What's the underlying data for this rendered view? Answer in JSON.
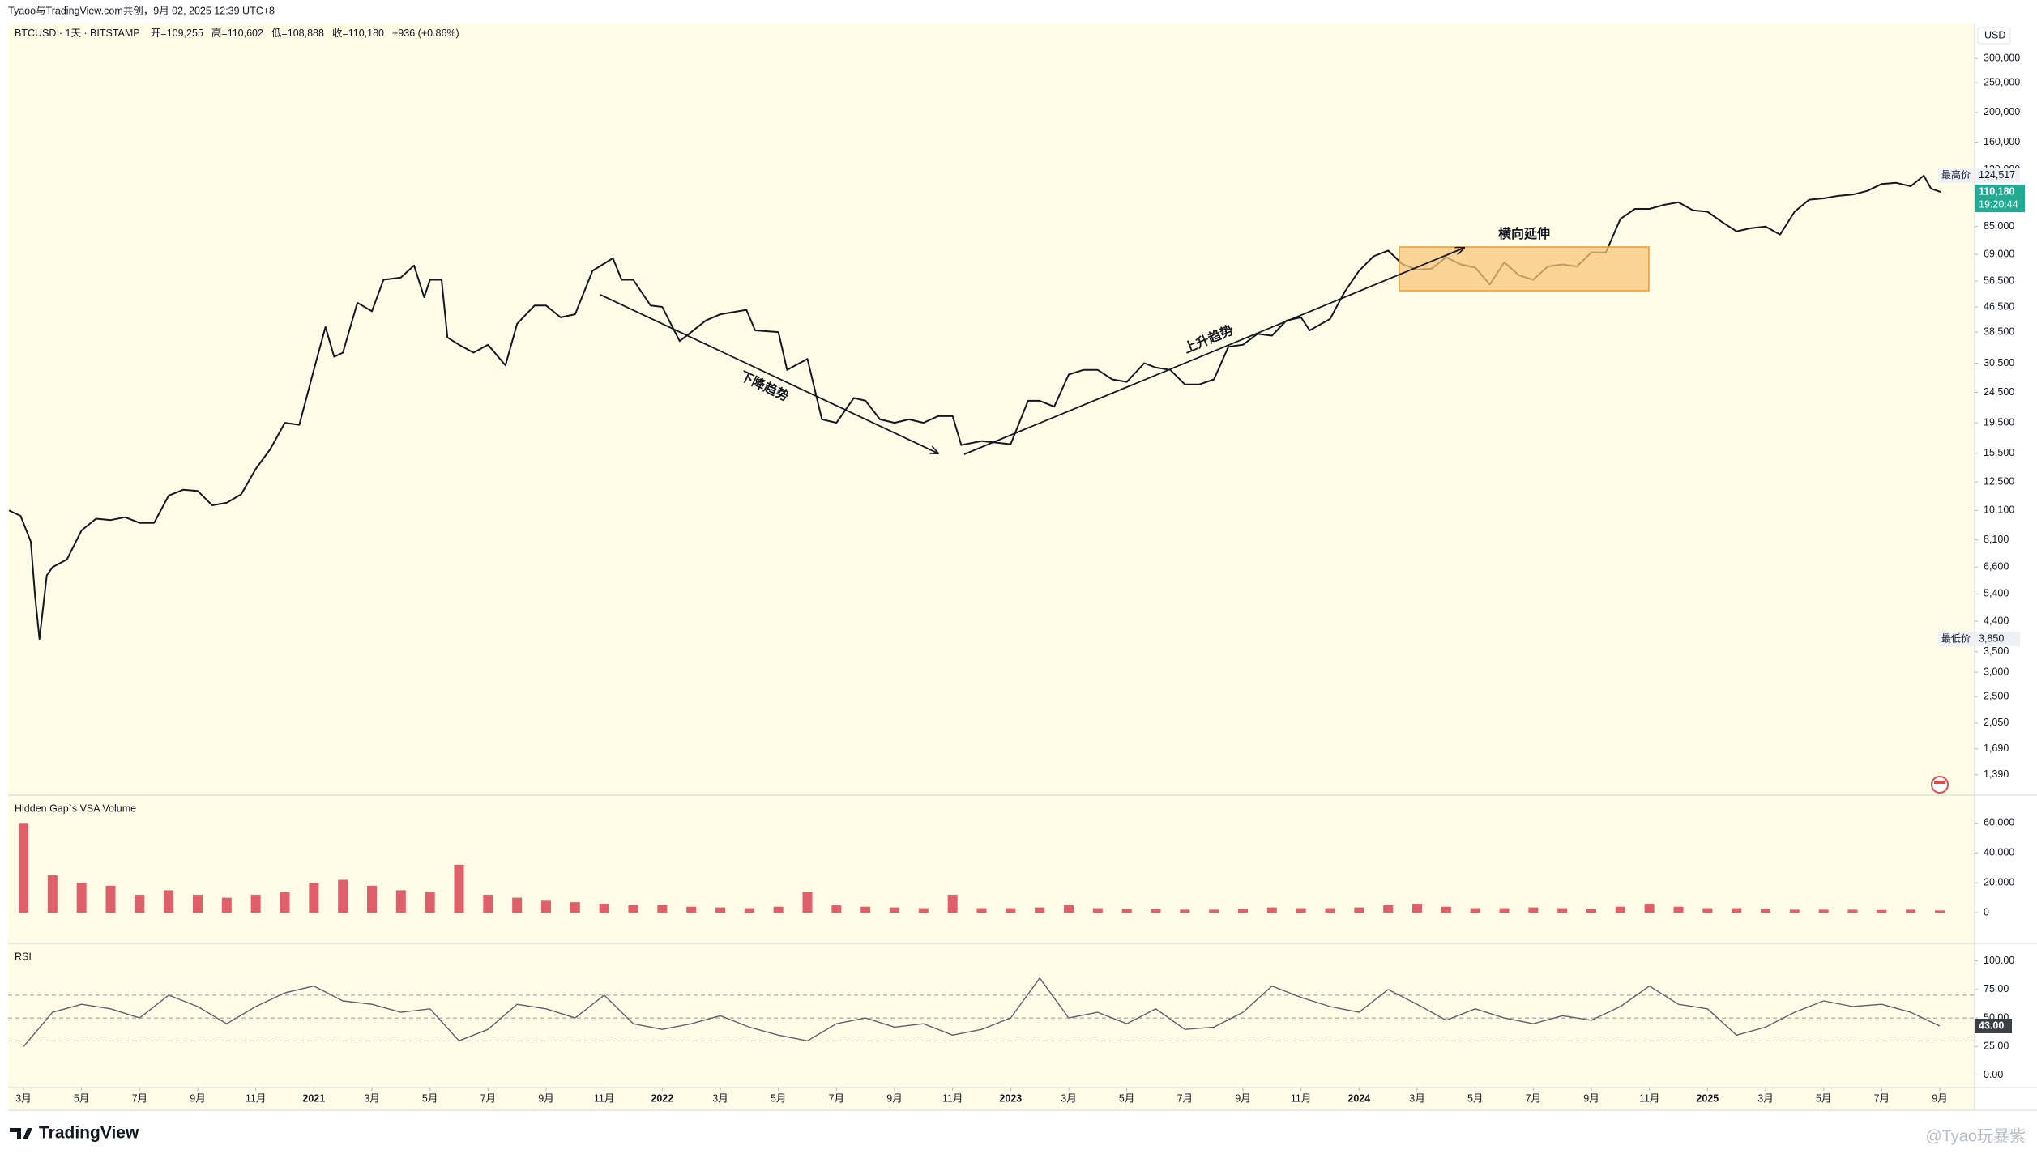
{
  "header": {
    "text": "Tyaoo与TradingView.com共创，9月 02, 2025 12:39 UTC+8"
  },
  "legend": {
    "symbol": "BTCUSD · 1天 · BITSTAMP",
    "ohlc": [
      "开=109,255",
      "高=110,602",
      "低=108,888",
      "收=110,180",
      "+936 (+0.86%)"
    ]
  },
  "currency": "USD",
  "drawings": {
    "down_trend": "下降趋势",
    "up_trend": "上升趋势",
    "sideways": "横向延伸"
  },
  "footer": {
    "brand": "TradingView",
    "watermark": "@Tyao玩暴紫"
  },
  "chart_data": [
    {
      "type": "line",
      "log_scale": true,
      "color": "#131722",
      "xlim": [
        1.47,
        69.2
      ],
      "ylim": [
        1200,
        390000
      ],
      "x": [
        1.5,
        1.9,
        2.25,
        2.4,
        2.55,
        2.8,
        3.0,
        3.5,
        4.0,
        4.5,
        5.0,
        5.5,
        6.0,
        6.5,
        7.0,
        7.5,
        8.0,
        8.5,
        9.0,
        9.5,
        10.0,
        10.5,
        11.0,
        11.5,
        12.0,
        12.4,
        12.7,
        13.0,
        13.5,
        14.0,
        14.4,
        15.0,
        15.45,
        15.8,
        16.0,
        16.4,
        16.6,
        17.0,
        17.5,
        18.0,
        18.6,
        19.0,
        19.6,
        20.0,
        20.5,
        21.0,
        21.6,
        22.3,
        22.6,
        23.0,
        23.6,
        24.0,
        24.6,
        25.0,
        25.5,
        26.0,
        26.9,
        27.2,
        28.0,
        28.3,
        29.0,
        29.5,
        30.0,
        30.6,
        31.0,
        31.5,
        32.0,
        32.5,
        33.0,
        33.5,
        34.0,
        34.3,
        35.0,
        35.5,
        36.0,
        36.6,
        37.0,
        37.5,
        38.0,
        38.5,
        39.0,
        39.5,
        40.0,
        40.6,
        41.0,
        41.5,
        42.0,
        42.5,
        43.0,
        43.5,
        44.0,
        44.5,
        45.0,
        45.5,
        46.0,
        46.3,
        47.0,
        47.5,
        48.0,
        48.5,
        49.0,
        49.5,
        50.0,
        50.5,
        51.0,
        51.5,
        52.0,
        52.5,
        53.0,
        53.5,
        54.0,
        54.5,
        55.0,
        55.5,
        56.0,
        56.5,
        57.0,
        57.5,
        58.0,
        58.5,
        59.0,
        59.5,
        60.0,
        60.5,
        61.0,
        61.5,
        62.0,
        62.5,
        63.0,
        63.5,
        64.0,
        64.5,
        65.0,
        65.5,
        66.0,
        66.5,
        67.0,
        67.45,
        67.7,
        68.03
      ],
      "values": [
        10100,
        9700,
        8000,
        5300,
        3850,
        6200,
        6600,
        7000,
        8700,
        9500,
        9400,
        9600,
        9200,
        9200,
        11300,
        11800,
        11700,
        10500,
        10700,
        11400,
        13800,
        16000,
        19500,
        19200,
        29000,
        40000,
        32000,
        33000,
        48000,
        45000,
        57000,
        58000,
        63500,
        50000,
        57000,
        57000,
        37000,
        35000,
        33000,
        35000,
        30000,
        41000,
        47000,
        47000,
        43000,
        44000,
        61000,
        67000,
        57000,
        57000,
        47000,
        46500,
        36000,
        38500,
        42000,
        44000,
        45500,
        39000,
        38500,
        29000,
        31500,
        20000,
        19500,
        23500,
        23000,
        20000,
        19500,
        20000,
        19500,
        20500,
        20500,
        16500,
        17000,
        16800,
        16600,
        23000,
        23000,
        22000,
        28000,
        29000,
        29000,
        27000,
        26500,
        30500,
        29500,
        29000,
        26000,
        26000,
        27000,
        34500,
        35000,
        38000,
        37500,
        42000,
        43000,
        39000,
        42500,
        52000,
        61000,
        68000,
        71000,
        64000,
        61500,
        62000,
        67500,
        64000,
        62500,
        55000,
        65000,
        59000,
        57000,
        63000,
        64000,
        63000,
        70000,
        70000,
        90000,
        97000,
        97000,
        100000,
        102000,
        96000,
        95000,
        88000,
        82000,
        84000,
        85000,
        80000,
        95000,
        104000,
        105000,
        107000,
        108000,
        111000,
        117000,
        118000,
        115000,
        124517,
        113000,
        110180
      ],
      "yticks": [
        {
          "value": 300000,
          "label": "300,000"
        },
        {
          "value": 250000,
          "label": "250,000"
        },
        {
          "value": 200000,
          "label": "200,000"
        },
        {
          "value": 160000,
          "label": "160,000"
        },
        {
          "value": 130000,
          "label": "130,000"
        },
        {
          "value": 85000,
          "label": "85,000"
        },
        {
          "value": 69000,
          "label": "69,000"
        },
        {
          "value": 56500,
          "label": "56,500"
        },
        {
          "value": 46500,
          "label": "46,500"
        },
        {
          "value": 38500,
          "label": "38,500"
        },
        {
          "value": 30500,
          "label": "30,500"
        },
        {
          "value": 24500,
          "label": "24,500"
        },
        {
          "value": 19500,
          "label": "19,500"
        },
        {
          "value": 15500,
          "label": "15,500"
        },
        {
          "value": 12500,
          "label": "12,500"
        },
        {
          "value": 10100,
          "label": "10,100"
        },
        {
          "value": 8100,
          "label": "8,100"
        },
        {
          "value": 6600,
          "label": "6,600"
        },
        {
          "value": 5400,
          "label": "5,400"
        },
        {
          "value": 4400,
          "label": "4,400"
        },
        {
          "value": 3500,
          "label": "3,500"
        },
        {
          "value": 3000,
          "label": "3,000"
        },
        {
          "value": 2500,
          "label": "2,500"
        },
        {
          "value": 2050,
          "label": "2,050"
        },
        {
          "value": 1690,
          "label": "1,690"
        },
        {
          "value": 1390,
          "label": "1,390"
        }
      ],
      "price_labels": [
        {
          "name": "最高价",
          "value": 124517,
          "label": "124,517"
        },
        {
          "value": 110180,
          "label": "110,180",
          "countdown": "19:20:44",
          "color": "#22ab94"
        },
        {
          "name": "最低价",
          "value": 3850,
          "label": "3,850"
        }
      ]
    },
    {
      "type": "bar",
      "title": "Hidden Gap`s VSA Volume",
      "color": "#e0606a",
      "xlim": [
        1.47,
        69.2
      ],
      "ylim": [
        -20000,
        77500
      ],
      "x": [
        2,
        3,
        4,
        5,
        6,
        7,
        8,
        9,
        10,
        11,
        12,
        13,
        14,
        15,
        16,
        17,
        18,
        19,
        20,
        21,
        22,
        23,
        24,
        25,
        26,
        27,
        28,
        29,
        30,
        31,
        32,
        33,
        34,
        35,
        36,
        37,
        38,
        39,
        40,
        41,
        42,
        43,
        44,
        45,
        46,
        47,
        48,
        49,
        50,
        51,
        52,
        53,
        54,
        55,
        56,
        57,
        58,
        59,
        60,
        61,
        62,
        63,
        64,
        65,
        66,
        67,
        68
      ],
      "values": [
        60000,
        25000,
        20000,
        18000,
        12000,
        15000,
        12000,
        10000,
        12000,
        14000,
        20000,
        22000,
        18000,
        15000,
        14000,
        32000,
        12000,
        10000,
        8000,
        7000,
        6000,
        5000,
        5000,
        4000,
        3500,
        3000,
        4000,
        14000,
        5000,
        4000,
        3500,
        3000,
        12000,
        3000,
        3000,
        3500,
        5000,
        3000,
        2500,
        2500,
        2000,
        2000,
        2500,
        3500,
        3000,
        3000,
        3500,
        5000,
        6000,
        4000,
        3000,
        3000,
        3500,
        3000,
        2500,
        4000,
        6000,
        4000,
        3000,
        3000,
        2500,
        2000,
        2000,
        2000,
        1800,
        2000,
        1500
      ],
      "yticks": [
        {
          "value": 60000,
          "label": "60,000"
        },
        {
          "value": 40000,
          "label": "40,000"
        },
        {
          "value": 20000,
          "label": "20,000"
        },
        0
      ]
    },
    {
      "type": "line",
      "title": "RSI",
      "color": "#5d606b",
      "xlim": [
        1.47,
        69.2
      ],
      "ylim": [
        -10.9,
        113.9
      ],
      "levels": [
        70,
        50,
        30
      ],
      "x": [
        2,
        3,
        4,
        5,
        6,
        7,
        8,
        9,
        10,
        11,
        12,
        13,
        14,
        15,
        16,
        17,
        18,
        19,
        20,
        21,
        22,
        23,
        24,
        25,
        26,
        27,
        28,
        29,
        30,
        31,
        32,
        33,
        34,
        35,
        36,
        37,
        38,
        39,
        40,
        41,
        42,
        43,
        44,
        45,
        46,
        47,
        48,
        49,
        50,
        51,
        52,
        53,
        54,
        55,
        56,
        57,
        58,
        59,
        60,
        61,
        62,
        63,
        64,
        65,
        66,
        67,
        68
      ],
      "values": [
        25,
        55,
        62,
        58,
        50,
        70,
        60,
        45,
        60,
        72,
        78,
        65,
        62,
        55,
        58,
        30,
        40,
        62,
        58,
        50,
        70,
        45,
        40,
        45,
        52,
        42,
        35,
        30,
        45,
        50,
        42,
        45,
        35,
        40,
        50,
        85,
        50,
        55,
        45,
        58,
        40,
        42,
        55,
        78,
        68,
        60,
        55,
        75,
        62,
        48,
        58,
        50,
        45,
        52,
        48,
        60,
        78,
        62,
        58,
        35,
        42,
        55,
        65,
        60,
        62,
        55,
        43
      ],
      "current": {
        "value": 43,
        "label": "43.00"
      },
      "yticks": [
        {
          "value": 100,
          "label": "100.00"
        },
        {
          "value": 75,
          "label": "75.00"
        },
        {
          "value": 50,
          "label": "50.00"
        },
        {
          "value": 25,
          "label": "25.00"
        },
        {
          "value": 0,
          "label": "0.00"
        }
      ],
      "xticks": [
        {
          "value": 2,
          "label": "3月"
        },
        {
          "value": 4,
          "label": "5月"
        },
        {
          "value": 6,
          "label": "7月"
        },
        {
          "value": 8,
          "label": "9月"
        },
        {
          "value": 10,
          "label": "11月"
        },
        {
          "value": 12,
          "label": "2021"
        },
        {
          "value": 14,
          "label": "3月"
        },
        {
          "value": 16,
          "label": "5月"
        },
        {
          "value": 18,
          "label": "7月"
        },
        {
          "value": 20,
          "label": "9月"
        },
        {
          "value": 22,
          "label": "11月"
        },
        {
          "value": 24,
          "label": "2022"
        },
        {
          "value": 26,
          "label": "3月"
        },
        {
          "value": 28,
          "label": "5月"
        },
        {
          "value": 30,
          "label": "7月"
        },
        {
          "value": 32,
          "label": "9月"
        },
        {
          "value": 34,
          "label": "11月"
        },
        {
          "value": 36,
          "label": "2023"
        },
        {
          "value": 38,
          "label": "3月"
        },
        {
          "value": 40,
          "label": "5月"
        },
        {
          "value": 42,
          "label": "7月"
        },
        {
          "value": 44,
          "label": "9月"
        },
        {
          "value": 46,
          "label": "11月"
        },
        {
          "value": 48,
          "label": "2024"
        },
        {
          "value": 50,
          "label": "3月"
        },
        {
          "value": 52,
          "label": "5月"
        },
        {
          "value": 54,
          "label": "7月"
        },
        {
          "value": 56,
          "label": "9月"
        },
        {
          "value": 58,
          "label": "11月"
        },
        {
          "value": 60,
          "label": "2025"
        },
        {
          "value": 62,
          "label": "3月"
        },
        {
          "value": 64,
          "label": "5月"
        },
        {
          "value": 66,
          "label": "7月"
        },
        {
          "value": 68,
          "label": "9月"
        }
      ]
    }
  ]
}
